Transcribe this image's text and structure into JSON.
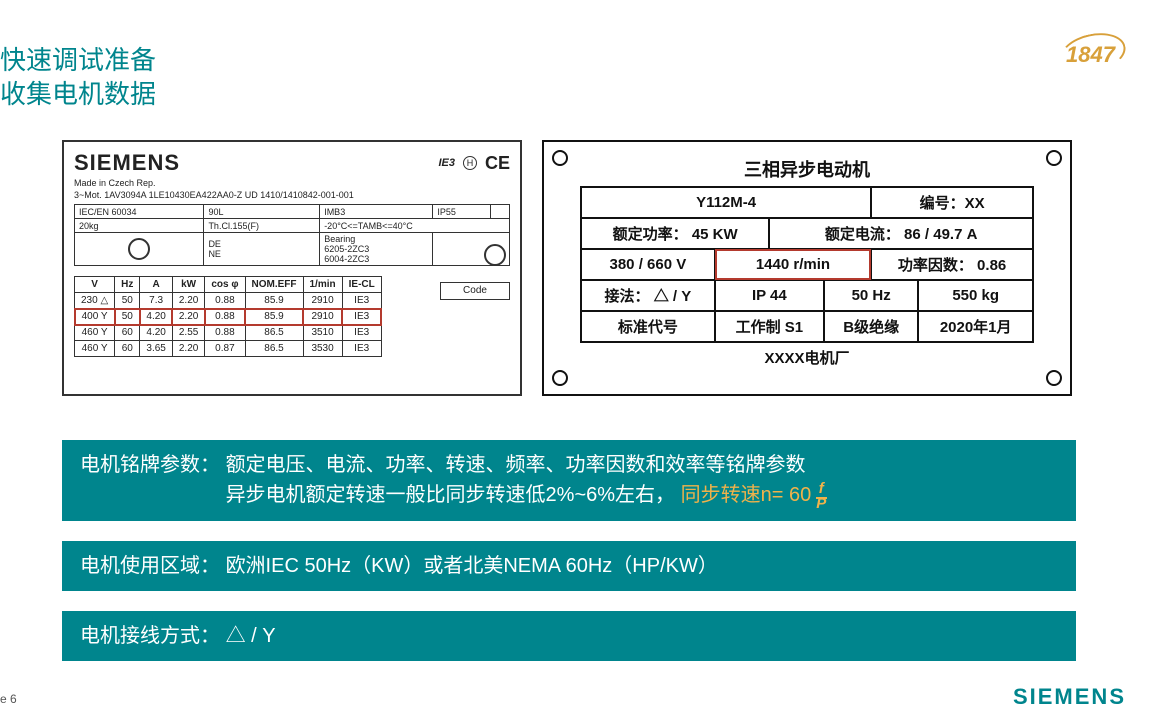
{
  "title": {
    "line1": "快速调试准备",
    "line2": "收集电机数据"
  },
  "logo1847": "1847",
  "siemens_footer": "SIEMENS",
  "page_number": "e 6",
  "plate_left": {
    "brand": "SIEMENS",
    "ie3": "IE3",
    "h_mark": "H",
    "ce": "CE",
    "made": "Made in Czech Rep.",
    "line2": "3~Mot.   1AV3094A    1LE10430EA422AA0-Z     UD 1410/1410842-001-001",
    "spec_rows": [
      [
        "IEC/EN 60034",
        "90L",
        "IMB3",
        "IP55",
        ""
      ],
      [
        "20kg",
        "Th.Cl.155(F)",
        "-20°C<=TAMB<=40°C",
        "",
        ""
      ]
    ],
    "bearing_labels": {
      "de": "DE",
      "ne": "NE",
      "title": "Bearing",
      "de_val": "6205-2ZC3",
      "ne_val": "6004-2ZC3"
    },
    "ratings_headers": [
      "V",
      "Hz",
      "A",
      "kW",
      "cos φ",
      "NOM.EFF",
      "1/min",
      "IE-CL"
    ],
    "ratings_rows": [
      [
        "230 △",
        "50",
        "7.3",
        "2.20",
        "0.88",
        "85.9",
        "2910",
        "IE3"
      ],
      [
        "400 Y",
        "50",
        "4.20",
        "2.20",
        "0.88",
        "85.9",
        "2910",
        "IE3"
      ],
      [
        "460 Y",
        "60",
        "4.20",
        "2.55",
        "0.88",
        "86.5",
        "3510",
        "IE3"
      ],
      [
        "460 Y",
        "60",
        "3.65",
        "2.20",
        "0.87",
        "86.5",
        "3530",
        "IE3"
      ]
    ],
    "highlight_row_index": 1,
    "code_label": "Code"
  },
  "plate_right": {
    "title": "三相异步电动机",
    "rows": [
      [
        "Y112M-4",
        "编号：XX"
      ],
      [
        "额定功率： 45  KW",
        "额定电流： 86 / 49.7  A"
      ],
      [
        "380 / 660 V",
        "1440 r/min",
        "功率因数： 0.86"
      ],
      [
        "接法： △ / Y",
        "IP 44",
        "50 Hz",
        "550 kg"
      ],
      [
        "标准代号",
        "工作制  S1",
        "B级绝缘",
        "2020年1月"
      ]
    ],
    "factory": "XXXX电机厂",
    "highlight_cell": "1440 r/min"
  },
  "bars": {
    "b1_label": "电机铭牌参数：",
    "b1_text": "额定电压、电流、功率、转速、频率、功率因数和效率等铭牌参数",
    "b1_line2_a": "异步电机额定转速一般比同步转速低2%~6%左右，",
    "b1_line2_b": "同步转速n= 60",
    "frac_n": "f",
    "frac_d": "P",
    "b2_label": "电机使用区域：",
    "b2_text": "欧洲IEC  50Hz（KW）或者北美NEMA  60Hz（HP/KW）",
    "b3_label": "电机接线方式：",
    "b3_text": "△  /  Y"
  },
  "colors": {
    "teal": "#00858d",
    "orange": "#f0b24a",
    "highlight_red": "#b43a2e"
  }
}
